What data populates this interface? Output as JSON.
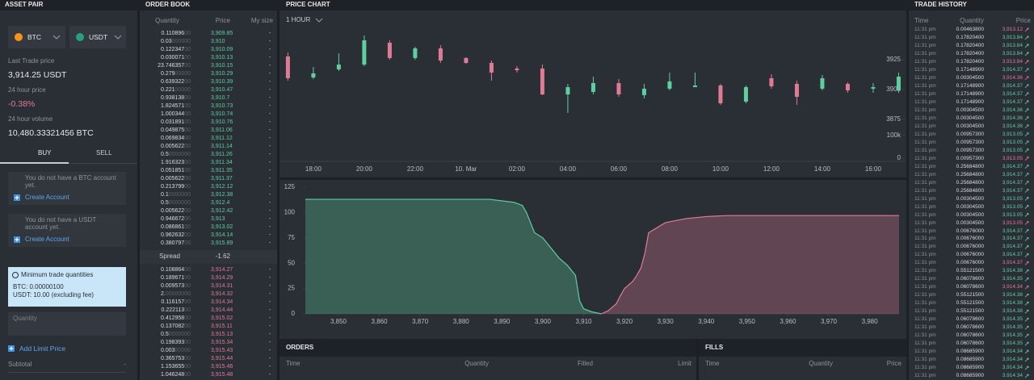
{
  "asset_pair": {
    "title": "ASSET PAIR",
    "base": "BTC",
    "quote": "USDT",
    "last_trade_label": "Last Trade price",
    "last_trade": "3,914.25 USDT",
    "price_change_label": "24 hour price",
    "price_change": "-0.38%",
    "volume_label": "24 hour volume",
    "volume": "10,480.33321456 BTC",
    "tabs": [
      "BUY",
      "SELL"
    ],
    "notices": [
      {
        "text": "You do not have a BTC account yet.",
        "action": "Create Account"
      },
      {
        "text": "You do not have a USDT account yet.",
        "action": "Create Account"
      }
    ],
    "min_title": "Minimum trade quantities",
    "min_lines": [
      "BTC: 0.00000100",
      "USDT: 10.00 (excluding fee)"
    ],
    "quantity_placeholder": "Quantity",
    "add_limit": "Add Limit Price",
    "subtotal_label": "Subtotal",
    "subtotal": "-"
  },
  "order_book": {
    "title": "ORDER BOOK",
    "columns": [
      "Quantity",
      "Price",
      "My size"
    ],
    "asks": {
      "color": "#5fcf9f",
      "rows": [
        [
          "0.110896",
          "00",
          "3,909.85",
          "-"
        ],
        [
          "0.03",
          "000000",
          "3,910",
          "-"
        ],
        [
          "0.122347",
          "00",
          "3,910.09",
          "-"
        ],
        [
          "0.030071",
          "00",
          "3,910.13",
          "-"
        ],
        [
          "23.746357",
          "00",
          "3,910.15",
          "-"
        ],
        [
          "0.279",
          "00000",
          "3,910.29",
          "-"
        ],
        [
          "0.639322",
          "00",
          "3,910.39",
          "-"
        ],
        [
          "0.221",
          "00000",
          "3,910.47",
          "-"
        ],
        [
          "0.938138",
          "00",
          "3,910.7",
          "-"
        ],
        [
          "1.824571",
          "00",
          "3,910.73",
          "-"
        ],
        [
          "1.000344",
          "00",
          "3,910.74",
          "-"
        ],
        [
          "0.031891",
          "00",
          "3,910.76",
          "-"
        ],
        [
          "0.049875",
          "00",
          "3,911.06",
          "-"
        ],
        [
          "0.069834",
          "00",
          "3,911.12",
          "-"
        ],
        [
          "0.005622",
          "00",
          "3,911.14",
          "-"
        ],
        [
          "0.5",
          "0000000",
          "3,911.26",
          "-"
        ],
        [
          "1.916323",
          "00",
          "3,911.34",
          "-"
        ],
        [
          "0.051851",
          "00",
          "3,911.35",
          "-"
        ],
        [
          "0.005622",
          "00",
          "3,911.37",
          "-"
        ],
        [
          "0.213799",
          "00",
          "3,912.12",
          "-"
        ],
        [
          "0.1",
          "0000000",
          "3,912.38",
          "-"
        ],
        [
          "0.5",
          "0000000",
          "3,912.4",
          "-"
        ],
        [
          "0.005622",
          "00",
          "3,912.42",
          "-"
        ],
        [
          "0.946672",
          "00",
          "3,913",
          "-"
        ],
        [
          "0.086861",
          "00",
          "3,913.02",
          "-"
        ],
        [
          "0.962632",
          "00",
          "3,914.14",
          "-"
        ],
        [
          "0.380797",
          "00",
          "3,915.89",
          "-"
        ]
      ]
    },
    "spread_label": "Spread",
    "spread": "-1.62",
    "bids": {
      "color": "#e07b95",
      "rows": [
        [
          "0.108864",
          "00",
          "3,914.27",
          "-"
        ],
        [
          "0.189671",
          "00",
          "3,914.29",
          "-"
        ],
        [
          "0.009573",
          "00",
          "3,914.31",
          "-"
        ],
        [
          "2.",
          "00000000",
          "3,914.32",
          "-"
        ],
        [
          "0.116157",
          "00",
          "3,914.34",
          "-"
        ],
        [
          "0.222113",
          "00",
          "3,914.44",
          "-"
        ],
        [
          "0.412958",
          "00",
          "3,915.02",
          "-"
        ],
        [
          "0.137082",
          "00",
          "3,915.11",
          "-"
        ],
        [
          "0.5",
          "0000000",
          "3,915.13",
          "-"
        ],
        [
          "0.198393",
          "00",
          "3,915.34",
          "-"
        ],
        [
          "0.003",
          "00000",
          "3,915.43",
          "-"
        ],
        [
          "0.365753",
          "00",
          "3,915.44",
          "-"
        ],
        [
          "1.153655",
          "00",
          "3,915.46",
          "-"
        ],
        [
          "1.046248",
          "00",
          "3,915.48",
          "-"
        ]
      ]
    }
  },
  "price_chart": {
    "title": "PRICE CHART",
    "interval": "1 HOUR"
  },
  "chart_data": [
    {
      "type": "candlestick",
      "up_color": "#5fcf9f",
      "down_color": "#e07b95",
      "x": [
        17,
        18,
        19,
        20,
        21,
        22,
        23,
        24,
        25,
        26,
        27,
        28,
        29,
        30,
        31,
        32,
        33,
        34,
        35,
        36,
        37,
        38,
        39,
        40,
        41
      ],
      "open": [
        3927.7,
        3910.1,
        3916.9,
        3920.9,
        3939.2,
        3926.4,
        3934.5,
        3926.4,
        3922.3,
        3917.6,
        3917.6,
        3895.9,
        3898,
        3905.4,
        3895.3,
        3900.7,
        3902,
        3903.4,
        3889.9,
        3909.5,
        3904.7,
        3900.7,
        3904.7,
        3900.7,
        3899.3
      ],
      "high": [
        3931,
        3918.9,
        3930.4,
        3945.3,
        3941.2,
        3935.8,
        3937.2,
        3927,
        3924.3,
        3919.6,
        3921,
        3904.7,
        3910.8,
        3908.8,
        3904.7,
        3914.2,
        3914.2,
        3904.7,
        3903.4,
        3912.8,
        3907.4,
        3912.2,
        3906.1,
        3905.4,
        3914.2
      ],
      "low": [
        3907.4,
        3908.8,
        3915.5,
        3919.6,
        3925,
        3925,
        3922.3,
        3921.6,
        3907.4,
        3914.2,
        3895.3,
        3880.4,
        3895.9,
        3893.9,
        3892.6,
        3899.3,
        3902,
        3887.2,
        3888.5,
        3900.7,
        3887.2,
        3899.3,
        3897.3,
        3897.3,
        3897.3
      ],
      "close": [
        3909.5,
        3913.5,
        3920.9,
        3941.2,
        3926.4,
        3934.5,
        3924.3,
        3922.3,
        3914.2,
        3916.2,
        3895.9,
        3902,
        3905.4,
        3895.9,
        3900.7,
        3906.8,
        3903.4,
        3888.5,
        3902,
        3902.7,
        3893.9,
        3909.5,
        3899.3,
        3902,
        3910.8
      ],
      "xlim": [
        16.67,
        41.24
      ],
      "xticks": [
        {
          "value": 18,
          "label": "18:00"
        },
        {
          "value": 20,
          "label": "20:00"
        },
        {
          "value": 22,
          "label": "22:00"
        },
        {
          "value": 24,
          "label": "10. Mar"
        },
        {
          "value": 26,
          "label": "02:00"
        },
        {
          "value": 28,
          "label": "04:00"
        },
        {
          "value": 30,
          "label": "06:00"
        },
        {
          "value": 32,
          "label": "08:00"
        },
        {
          "value": 34,
          "label": "10:00"
        },
        {
          "value": 36,
          "label": "12:00"
        },
        {
          "value": 38,
          "label": "14:00"
        },
        {
          "value": 40,
          "label": "16:00"
        }
      ],
      "ylim": [
        3863.5,
        3946.6
      ],
      "yticks": [
        3875,
        3900,
        3925
      ],
      "y2lim": [
        0,
        128000
      ],
      "y2ticks": [
        0,
        {
          "value": 100000,
          "label": "100k"
        }
      ]
    },
    {
      "type": "area",
      "series": [
        {
          "color": "#5fcf9f",
          "x": [
            3841.9,
            3887,
            3893,
            3895,
            3896,
            3897,
            3898,
            3900,
            3902,
            3904,
            3906,
            3908,
            3909,
            3910,
            3912,
            3914.3
          ],
          "values": [
            113,
            113,
            110,
            107,
            100,
            90,
            80,
            75,
            65,
            55,
            48,
            38,
            13,
            5,
            2,
            0
          ]
        },
        {
          "color": "#e07b95",
          "x": [
            3914.3,
            3916,
            3918,
            3919,
            3920,
            3922,
            3923,
            3924,
            3925,
            3925.9,
            3930,
            3935,
            3940,
            3945,
            3987.2
          ],
          "values": [
            0,
            3,
            10,
            18,
            25,
            32,
            38,
            45,
            60,
            80,
            90,
            94,
            96,
            97,
            97
          ]
        }
      ],
      "xlim": [
        3841.9,
        3987.2
      ],
      "xticks": [
        {
          "value": 3850,
          "label": "3,850"
        },
        {
          "value": 3860,
          "label": "3,860"
        },
        {
          "value": 3870,
          "label": "3,870"
        },
        {
          "value": 3880,
          "label": "3,880"
        },
        {
          "value": 3890,
          "label": "3,890"
        },
        {
          "value": 3900,
          "label": "3,900"
        },
        {
          "value": 3910,
          "label": "3,910"
        },
        {
          "value": 3920,
          "label": "3,920"
        },
        {
          "value": 3930,
          "label": "3,930"
        },
        {
          "value": 3940,
          "label": "3,940"
        },
        {
          "value": 3950,
          "label": "3,950"
        },
        {
          "value": 3960,
          "label": "3,960"
        },
        {
          "value": 3970,
          "label": "3,970"
        },
        {
          "value": 3980,
          "label": "3,980"
        }
      ],
      "ylim": [
        0,
        125
      ],
      "yticks": [
        0,
        25,
        50,
        75,
        100,
        125
      ]
    }
  ],
  "orders": {
    "title": "ORDERS",
    "columns": [
      "Time",
      "Quantity",
      "Filled",
      "Limit"
    ]
  },
  "fills": {
    "title": "FILLS",
    "columns": [
      "Time",
      "Quantity",
      "Price"
    ]
  },
  "trade_history": {
    "title": "TRADE HISTORY",
    "columns": [
      "Time",
      "Quantity",
      "Price"
    ],
    "rows": [
      [
        "11:31 pm",
        "0.00463800",
        "3,913.12",
        "#e07b95"
      ],
      [
        "11:31 pm",
        "0.17820400",
        "3,913.84",
        "#5fcf9f"
      ],
      [
        "11:31 pm",
        "0.17820400",
        "3,913.84",
        "#5fcf9f"
      ],
      [
        "11:31 pm",
        "0.17820400",
        "3,913.84",
        "#5fcf9f"
      ],
      [
        "11:31 pm",
        "0.17820400",
        "3,913.84",
        "#e07b95"
      ],
      [
        "11:31 pm",
        "0.17148900",
        "3,914.37",
        "#5fcf9f"
      ],
      [
        "11:31 pm",
        "0.00304500",
        "3,914.36",
        "#e07b95"
      ],
      [
        "11:31 pm",
        "0.17148900",
        "3,914.37",
        "#5fcf9f"
      ],
      [
        "11:31 pm",
        "0.17148900",
        "3,914.37",
        "#5fcf9f"
      ],
      [
        "11:31 pm",
        "0.17148900",
        "3,914.37",
        "#5fcf9f"
      ],
      [
        "11:31 pm",
        "0.00304500",
        "3,914.36",
        "#5fcf9f"
      ],
      [
        "11:31 pm",
        "0.00304500",
        "3,914.36",
        "#5fcf9f"
      ],
      [
        "11:31 pm",
        "0.00304500",
        "3,914.36",
        "#5fcf9f"
      ],
      [
        "11:31 pm",
        "0.00957300",
        "3,913.05",
        "#5fcf9f"
      ],
      [
        "11:31 pm",
        "0.00957300",
        "3,913.05",
        "#5fcf9f"
      ],
      [
        "11:31 pm",
        "0.00957300",
        "3,913.05",
        "#5fcf9f"
      ],
      [
        "11:31 pm",
        "0.00957300",
        "3,913.05",
        "#e07b95"
      ],
      [
        "11:31 pm",
        "0.25684800",
        "3,914.37",
        "#5fcf9f"
      ],
      [
        "11:31 pm",
        "0.25684800",
        "3,914.37",
        "#5fcf9f"
      ],
      [
        "11:31 pm",
        "0.25684800",
        "3,914.37",
        "#5fcf9f"
      ],
      [
        "11:31 pm",
        "0.25684800",
        "3,914.37",
        "#5fcf9f"
      ],
      [
        "11:31 pm",
        "0.00304500",
        "3,913.05",
        "#5fcf9f"
      ],
      [
        "11:31 pm",
        "0.00304500",
        "3,913.05",
        "#5fcf9f"
      ],
      [
        "11:31 pm",
        "0.00304500",
        "3,913.05",
        "#5fcf9f"
      ],
      [
        "11:31 pm",
        "0.00304500",
        "3,913.05",
        "#e07b95"
      ],
      [
        "11:31 pm",
        "0.00676000",
        "3,914.37",
        "#5fcf9f"
      ],
      [
        "11:31 pm",
        "0.00676000",
        "3,914.37",
        "#5fcf9f"
      ],
      [
        "11:31 pm",
        "0.00676000",
        "3,914.37",
        "#5fcf9f"
      ],
      [
        "11:31 pm",
        "0.00676000",
        "3,914.37",
        "#5fcf9f"
      ],
      [
        "11:31 pm",
        "0.00676000",
        "3,914.37",
        "#e07b95"
      ],
      [
        "11:31 pm",
        "0.55121500",
        "3,914.38",
        "#5fcf9f"
      ],
      [
        "11:31 pm",
        "0.06078600",
        "3,914.35",
        "#5fcf9f"
      ],
      [
        "11:31 pm",
        "0.06078600",
        "3,914.34",
        "#e07b95"
      ],
      [
        "11:31 pm",
        "0.55121500",
        "3,914.38",
        "#5fcf9f"
      ],
      [
        "11:31 pm",
        "0.55121500",
        "3,914.38",
        "#5fcf9f"
      ],
      [
        "11:31 pm",
        "0.55121500",
        "3,914.38",
        "#5fcf9f"
      ],
      [
        "11:31 pm",
        "0.06078600",
        "3,914.35",
        "#5fcf9f"
      ],
      [
        "11:31 pm",
        "0.06078600",
        "3,914.35",
        "#5fcf9f"
      ],
      [
        "11:31 pm",
        "0.06078600",
        "3,914.35",
        "#5fcf9f"
      ],
      [
        "11:31 pm",
        "0.06078600",
        "3,914.35",
        "#5fcf9f"
      ],
      [
        "11:31 pm",
        "0.08685900",
        "3,914.34",
        "#5fcf9f"
      ],
      [
        "11:31 pm",
        "0.08685900",
        "3,914.34",
        "#5fcf9f"
      ],
      [
        "11:31 pm",
        "0.08685900",
        "3,914.34",
        "#5fcf9f"
      ],
      [
        "11:31 pm",
        "0.08685900",
        "3,914.34",
        "#5fcf9f"
      ]
    ]
  }
}
